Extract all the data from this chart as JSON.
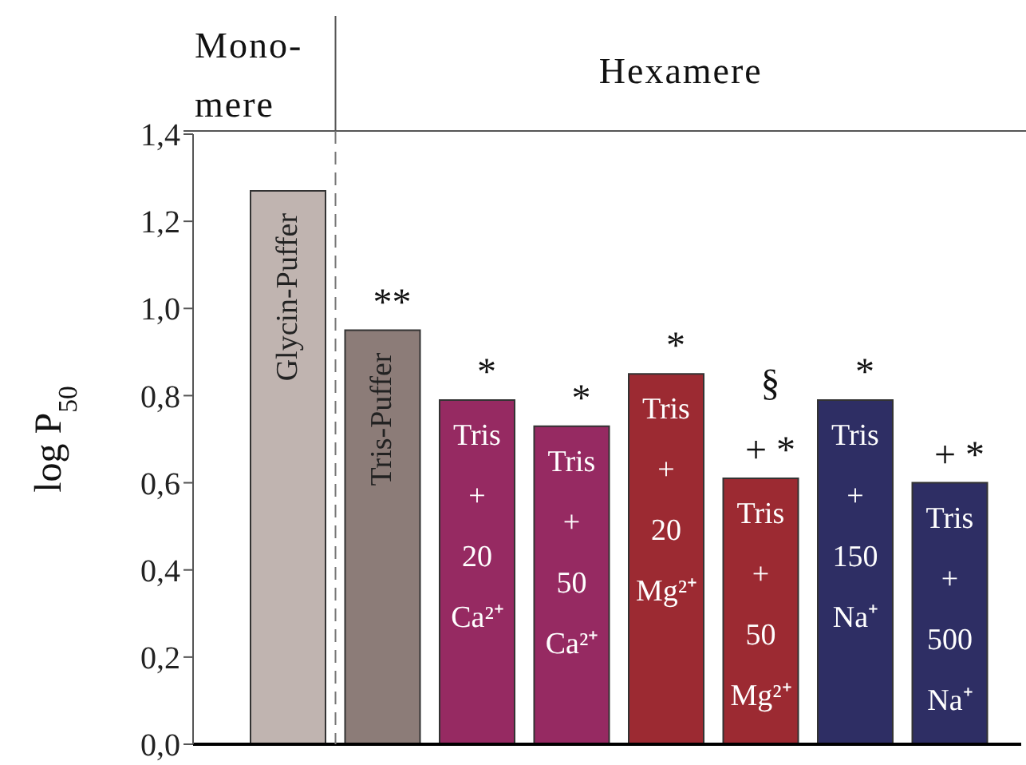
{
  "chart_data": {
    "type": "bar",
    "ylabel": "log P$_{50}$",
    "categories": [
      "Glycin-Puffer",
      "Tris-Puffer",
      "Tris + 20 Ca²⁺",
      "Tris + 50 Ca²⁺",
      "Tris + 20 Mg²⁺",
      "Tris + 50 Mg²⁺",
      "Tris + 150 Na⁺",
      "Tris + 500 Na⁺"
    ],
    "values": [
      1.27,
      0.95,
      0.79,
      0.73,
      0.85,
      0.61,
      0.79,
      0.6
    ],
    "colors": [
      "#c0b4b0",
      "#8c7c78",
      "#962a62",
      "#962a62",
      "#9c2a32",
      "#9c2a32",
      "#2e2e64",
      "#2e2e64"
    ],
    "ylim": [
      0,
      1.4
    ],
    "yticks": [
      {
        "value": 0,
        "label": "0,0"
      },
      {
        "value": 0.2,
        "label": "0,2"
      },
      {
        "value": 0.4,
        "label": "0,4"
      },
      {
        "value": 0.6,
        "label": "0,6"
      },
      {
        "value": 0.8,
        "label": "0,8"
      },
      {
        "value": 1.0,
        "label": "1,0"
      },
      {
        "value": 1.2,
        "label": "1,2"
      },
      {
        "value": 1.4,
        "label": "1,4"
      }
    ],
    "tick_labels": "y",
    "annotations": [
      "Mono- mere",
      "Hexamere",
      {
        "text": "**",
        "x": "Tris-Puffer",
        "y": 0.95
      },
      {
        "text": "*",
        "x": "Tris + 20 Ca²⁺",
        "y": 0.79
      },
      {
        "text": "*",
        "x": "Tris + 50 Ca²⁺",
        "y": 0.73
      },
      {
        "text": "*",
        "x": "Tris + 20 Mg²⁺",
        "y": 0.85
      },
      {
        "text": "+ *",
        "x": "Tris + 50 Mg²⁺",
        "y": 0.61
      },
      {
        "text": "§",
        "x": "Tris + 50 Mg²⁺",
        "y": 0.61
      },
      {
        "text": "*",
        "x": "Tris + 150 Na⁺",
        "y": 0.79
      },
      {
        "text": "+ *",
        "x": "Tris + 500 Na⁺",
        "y": 0.6
      }
    ]
  }
}
